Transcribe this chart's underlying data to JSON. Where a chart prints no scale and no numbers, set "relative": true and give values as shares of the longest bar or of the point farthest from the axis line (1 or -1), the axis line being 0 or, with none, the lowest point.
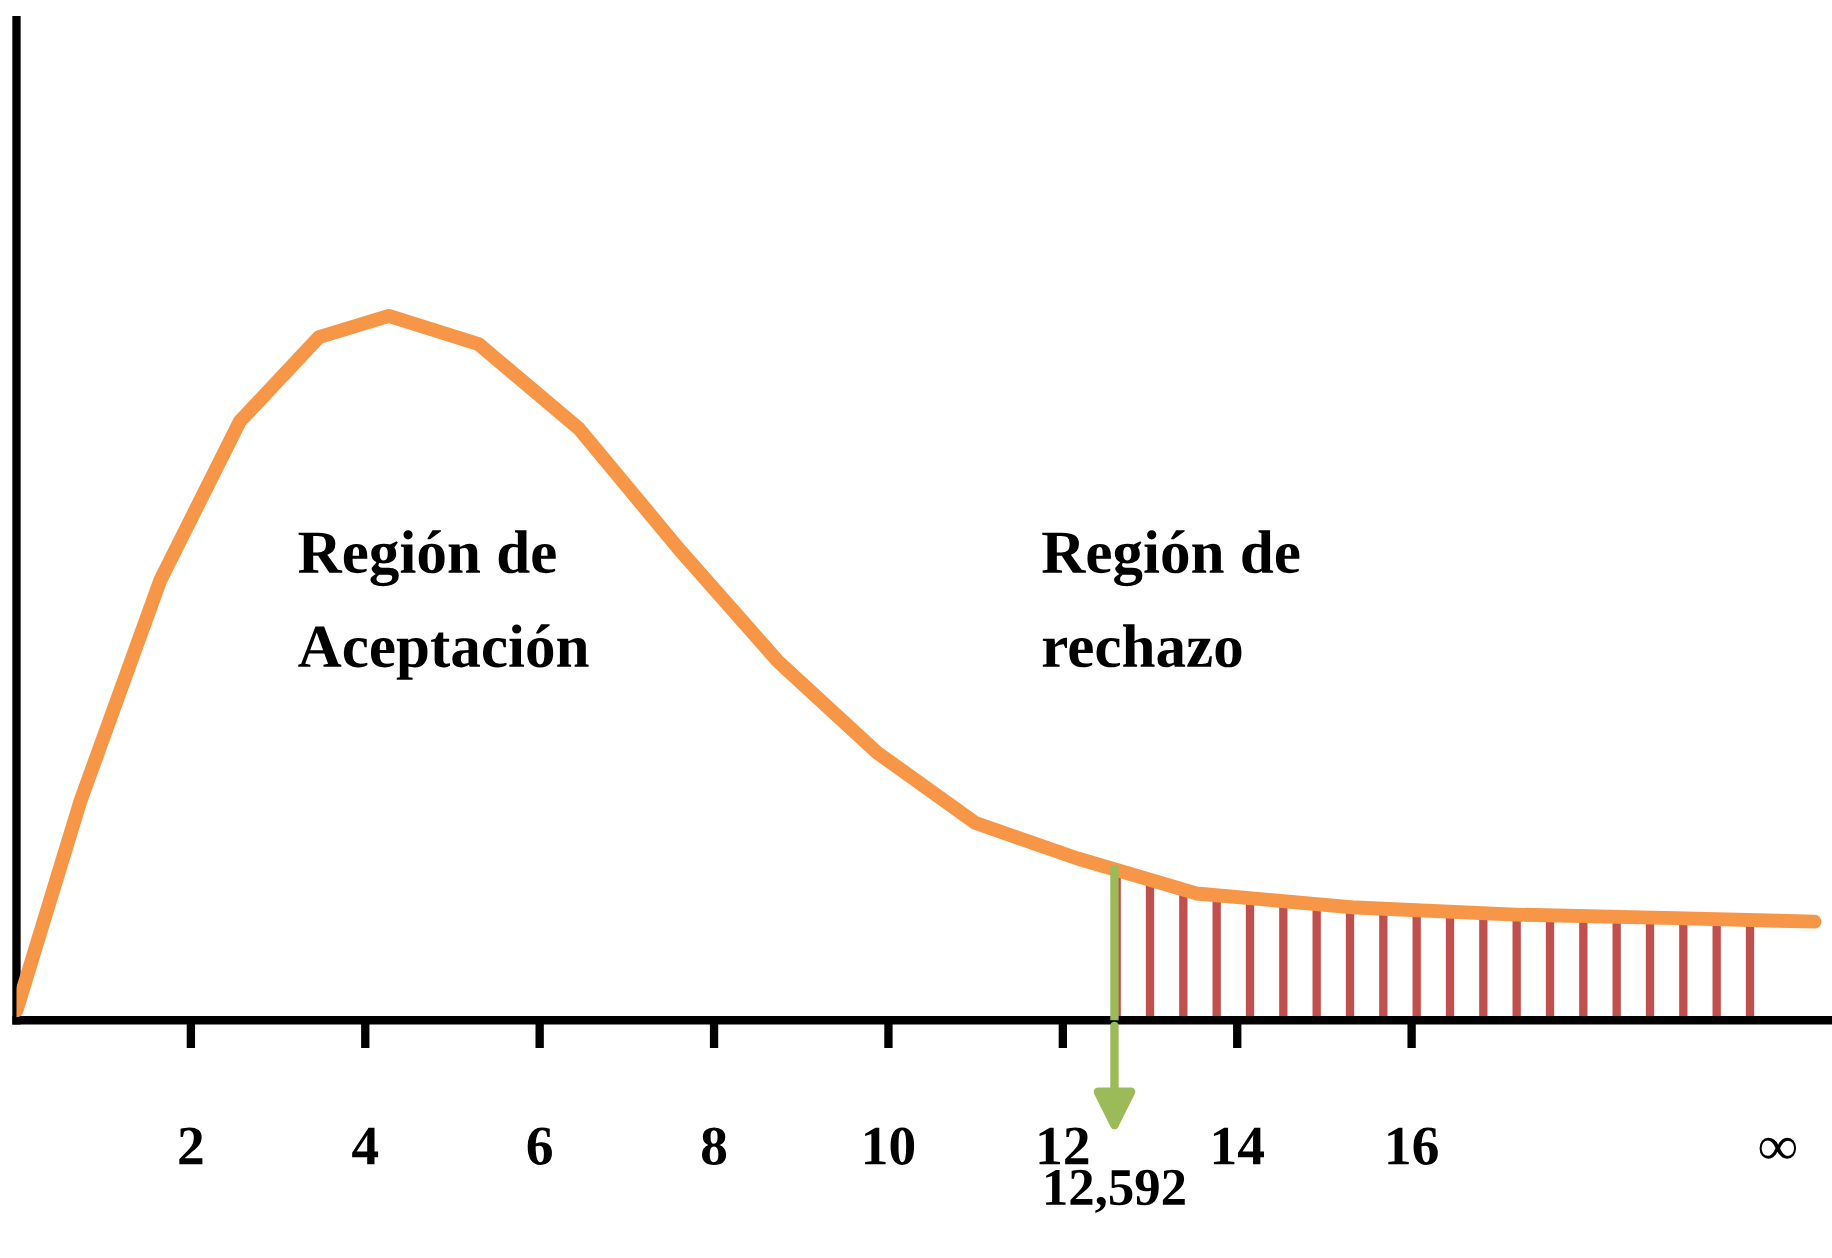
{
  "chart_data": {
    "type": "line",
    "relative": true,
    "x": [
      0,
      0.73,
      1.65,
      2.56,
      3.47,
      4.27,
      5.3,
      6.45,
      7.59,
      8.73,
      9.87,
      11.0,
      12.16,
      13.53,
      15.36,
      17.19,
      19.02,
      20.62
    ],
    "series": [
      {
        "color": "#f79646",
        "values": [
          0.014,
          0.31,
          0.625,
          0.85,
          0.97,
          1,
          0.96,
          0.84,
          0.67,
          0.51,
          0.38,
          0.28,
          0.23,
          0.18,
          0.16,
          0.15,
          0.145,
          0.14
        ]
      },
      {
        "type": "area",
        "color": "#c0504d",
        "x": [
          12.592,
          13.53,
          15.36,
          17.19,
          19.02,
          20.2
        ],
        "values": [
          0.21,
          0.18,
          0.16,
          0.15,
          0.145,
          0.14
        ]
      }
    ],
    "xlim": [
      0,
      20.8
    ],
    "xticks": [
      2,
      4,
      6,
      8,
      10,
      12,
      14,
      16,
      {
        "value": 20.2,
        "label": "∞"
      }
    ],
    "tick_labels": "x",
    "grid": false,
    "legend": false,
    "marker": "none",
    "line_style": "solid",
    "ref_lines": [
      {
        "axis": "x",
        "value": 12.592,
        "label": "12,592",
        "color": "#9bbb59"
      }
    ],
    "annotations": [
      "Región de\nAceptación",
      "Región de\nrechazo"
    ]
  }
}
